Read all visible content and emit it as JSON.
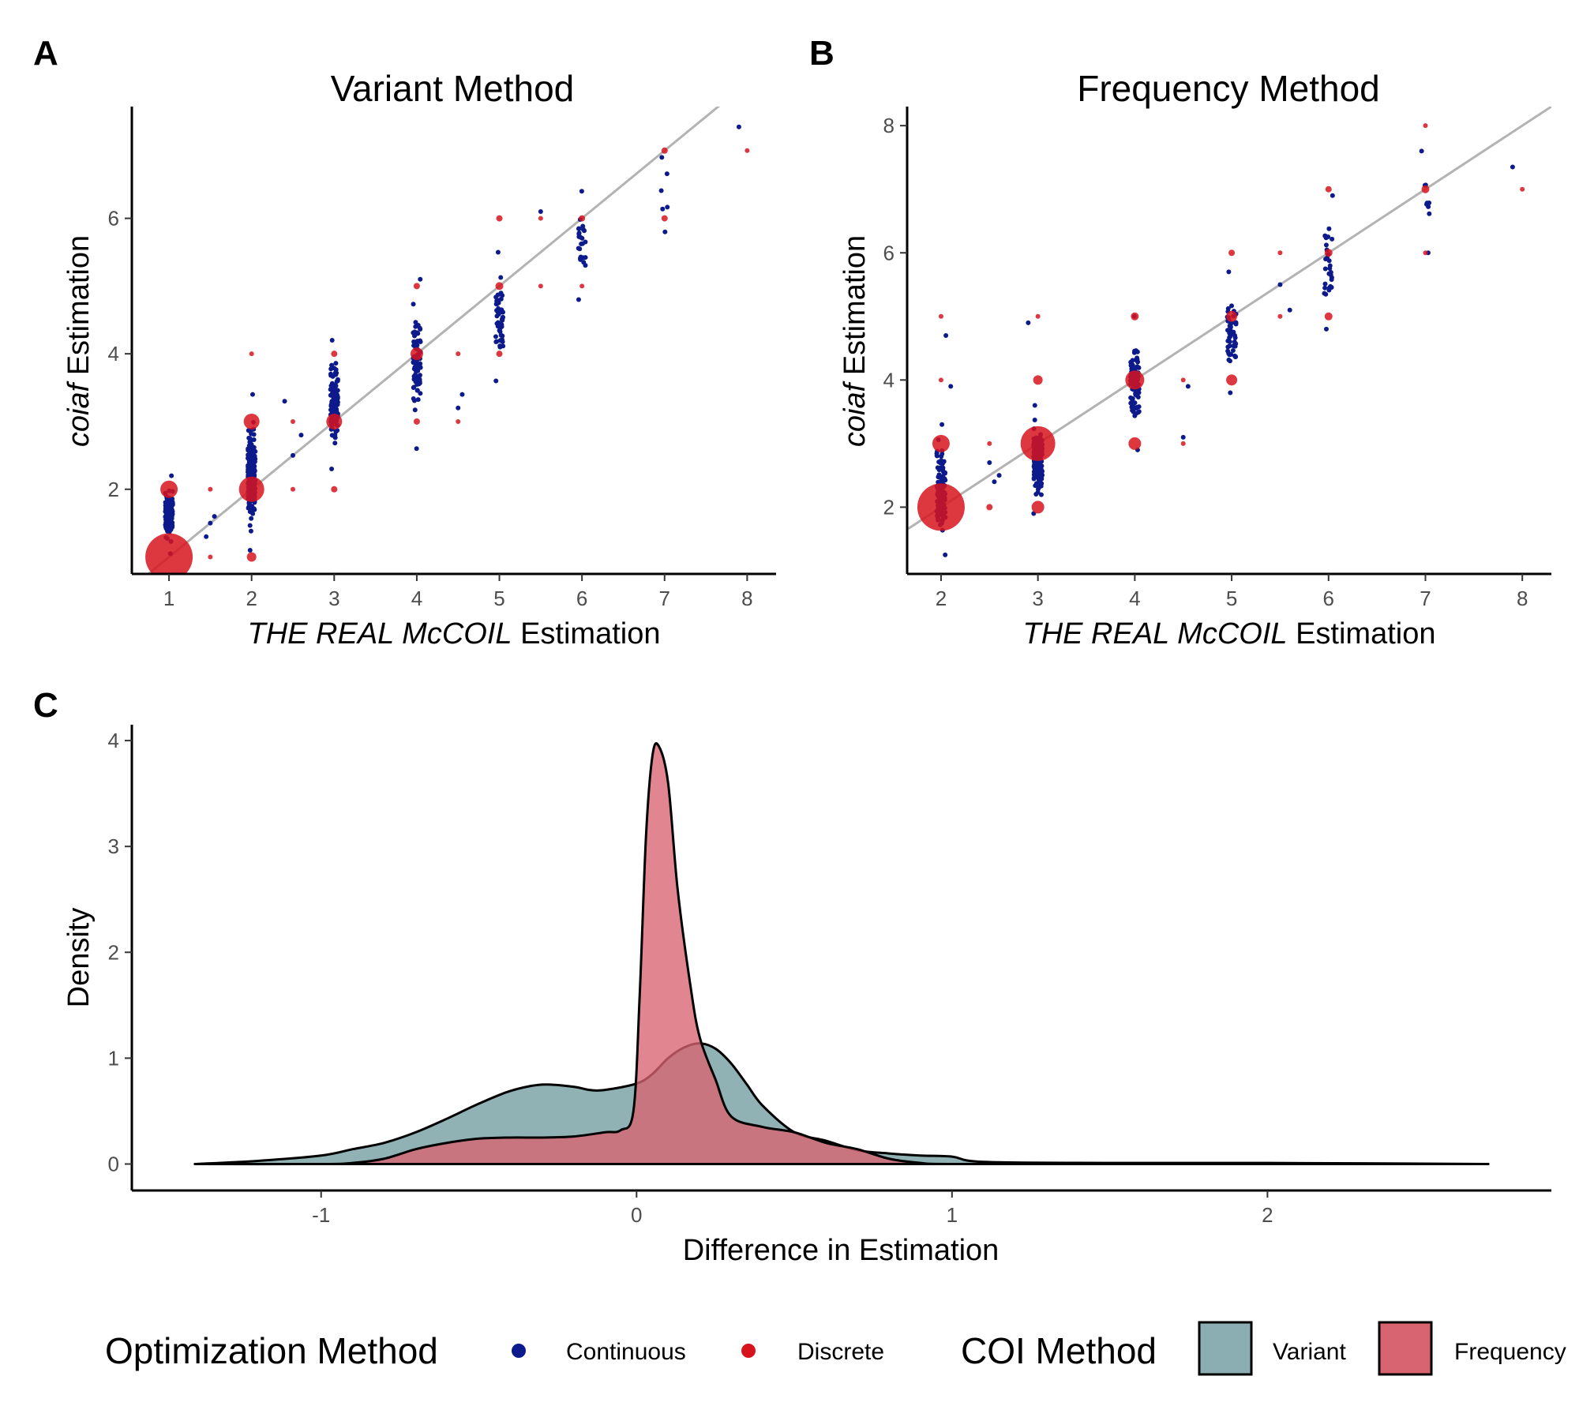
{
  "panels": {
    "a": {
      "letter": "A",
      "title": "Variant Method",
      "ylabel_italic": "coiaf",
      "ylabel_rest": " Estimation",
      "xlabel_italic": "THE REAL McCOIL",
      "xlabel_rest": " Estimation"
    },
    "b": {
      "letter": "B",
      "title": "Frequency Method",
      "ylabel_italic": "coiaf",
      "ylabel_rest": " Estimation",
      "xlabel_italic": "THE REAL McCOIL",
      "xlabel_rest": " Estimation"
    },
    "c": {
      "letter": "C",
      "xlabel": "Difference in Estimation",
      "ylabel": "Density"
    }
  },
  "legend": {
    "optimization_title": "Optimization Method",
    "optimization_items": [
      {
        "label": "Continuous",
        "color": "#0d1a8c"
      },
      {
        "label": "Discrete",
        "color": "#d7141e"
      }
    ],
    "coi_title": "COI Method",
    "coi_items": [
      {
        "label": "Variant",
        "color": "#8aaeb1"
      },
      {
        "label": "Frequency",
        "color": "#d96471"
      }
    ]
  },
  "chart_data": [
    {
      "type": "scatter",
      "panel": "A",
      "title": "Variant Method",
      "xlabel": "THE REAL McCOIL Estimation",
      "ylabel": "coiaf Estimation",
      "xlim": [
        0.55,
        8.35
      ],
      "ylim": [
        0.75,
        7.65
      ],
      "x_ticks": [
        1,
        2,
        3,
        4,
        5,
        6,
        7,
        8
      ],
      "y_ticks": [
        2,
        4,
        6
      ],
      "reference_line": {
        "slope": 1,
        "intercept": 0,
        "color": "#b3b3b3"
      },
      "continuous_clusters": [
        {
          "x": 1,
          "y_min": 1.05,
          "y_max": 2.2,
          "n": 160
        },
        {
          "x": 2,
          "y_min": 1.1,
          "y_max": 3.4,
          "n": 220
        },
        {
          "x": 3,
          "y_min": 2.3,
          "y_max": 4.2,
          "n": 140
        },
        {
          "x": 4,
          "y_min": 2.6,
          "y_max": 5.1,
          "n": 90
        },
        {
          "x": 5,
          "y_min": 3.6,
          "y_max": 5.5,
          "n": 50
        },
        {
          "x": 6,
          "y_min": 4.8,
          "y_max": 6.4,
          "n": 25
        },
        {
          "x": 7,
          "y_min": 5.8,
          "y_max": 6.9,
          "n": 6
        }
      ],
      "continuous_extra": [
        {
          "x": 1.45,
          "y": 1.3
        },
        {
          "x": 1.5,
          "y": 1.5
        },
        {
          "x": 1.55,
          "y": 1.6
        },
        {
          "x": 2.4,
          "y": 3.3
        },
        {
          "x": 2.5,
          "y": 2.5
        },
        {
          "x": 2.6,
          "y": 2.8
        },
        {
          "x": 4.5,
          "y": 3.2
        },
        {
          "x": 4.55,
          "y": 3.4
        },
        {
          "x": 5.5,
          "y": 6.1
        },
        {
          "x": 7.9,
          "y": 7.35
        }
      ],
      "discrete": [
        {
          "x": 1,
          "y": 1,
          "size": 30
        },
        {
          "x": 1,
          "y": 2,
          "size": 11
        },
        {
          "x": 1.5,
          "y": 1,
          "size": 3
        },
        {
          "x": 1.5,
          "y": 2,
          "size": 3
        },
        {
          "x": 2,
          "y": 2,
          "size": 16
        },
        {
          "x": 2,
          "y": 3,
          "size": 10
        },
        {
          "x": 2,
          "y": 1,
          "size": 6
        },
        {
          "x": 2,
          "y": 4,
          "size": 3
        },
        {
          "x": 2.5,
          "y": 2,
          "size": 3
        },
        {
          "x": 2.5,
          "y": 3,
          "size": 3
        },
        {
          "x": 3,
          "y": 3,
          "size": 10
        },
        {
          "x": 3,
          "y": 2,
          "size": 4
        },
        {
          "x": 3,
          "y": 4,
          "size": 4
        },
        {
          "x": 4,
          "y": 4,
          "size": 8
        },
        {
          "x": 4,
          "y": 3,
          "size": 4
        },
        {
          "x": 4,
          "y": 5,
          "size": 4
        },
        {
          "x": 4.5,
          "y": 3,
          "size": 3
        },
        {
          "x": 4.5,
          "y": 4,
          "size": 3
        },
        {
          "x": 5,
          "y": 5,
          "size": 5
        },
        {
          "x": 5,
          "y": 4,
          "size": 4
        },
        {
          "x": 5,
          "y": 6,
          "size": 4
        },
        {
          "x": 5.5,
          "y": 5,
          "size": 3
        },
        {
          "x": 5.5,
          "y": 6,
          "size": 3
        },
        {
          "x": 6,
          "y": 6,
          "size": 4
        },
        {
          "x": 6,
          "y": 5,
          "size": 3
        },
        {
          "x": 7,
          "y": 6,
          "size": 4
        },
        {
          "x": 7,
          "y": 7,
          "size": 4
        },
        {
          "x": 8,
          "y": 7,
          "size": 3
        }
      ]
    },
    {
      "type": "scatter",
      "panel": "B",
      "title": "Frequency Method",
      "xlabel": "THE REAL McCOIL Estimation",
      "ylabel": "coiaf Estimation",
      "xlim": [
        1.65,
        8.3
      ],
      "ylim": [
        0.95,
        8.3
      ],
      "x_ticks": [
        2,
        3,
        4,
        5,
        6,
        7,
        8
      ],
      "y_ticks": [
        2,
        4,
        6,
        8
      ],
      "reference_line": {
        "slope": 1,
        "intercept": 0,
        "color": "#b3b3b3"
      },
      "continuous_clusters": [
        {
          "x": 2,
          "y_min": 1.25,
          "y_max": 3.3,
          "n": 120
        },
        {
          "x": 3,
          "y_min": 1.9,
          "y_max": 3.6,
          "n": 140
        },
        {
          "x": 4,
          "y_min": 2.9,
          "y_max": 5.0,
          "n": 100
        },
        {
          "x": 5,
          "y_min": 3.8,
          "y_max": 5.7,
          "n": 55
        },
        {
          "x": 6,
          "y_min": 4.8,
          "y_max": 6.9,
          "n": 30
        },
        {
          "x": 7,
          "y_min": 6.0,
          "y_max": 7.6,
          "n": 9
        }
      ],
      "continuous_extra": [
        {
          "x": 2.05,
          "y": 4.7
        },
        {
          "x": 2.1,
          "y": 3.9
        },
        {
          "x": 2.5,
          "y": 2.7
        },
        {
          "x": 2.55,
          "y": 2.4
        },
        {
          "x": 2.6,
          "y": 2.5
        },
        {
          "x": 2.9,
          "y": 4.9
        },
        {
          "x": 4.5,
          "y": 3.1
        },
        {
          "x": 4.55,
          "y": 3.9
        },
        {
          "x": 5.5,
          "y": 5.5
        },
        {
          "x": 5.6,
          "y": 5.1
        },
        {
          "x": 7.9,
          "y": 7.35
        }
      ],
      "discrete": [
        {
          "x": 2,
          "y": 2,
          "size": 30
        },
        {
          "x": 2,
          "y": 3,
          "size": 11
        },
        {
          "x": 2,
          "y": 4,
          "size": 3
        },
        {
          "x": 2,
          "y": 5,
          "size": 3
        },
        {
          "x": 2.5,
          "y": 2,
          "size": 4
        },
        {
          "x": 2.5,
          "y": 3,
          "size": 3
        },
        {
          "x": 3,
          "y": 3,
          "size": 22
        },
        {
          "x": 3,
          "y": 2,
          "size": 8
        },
        {
          "x": 3,
          "y": 4,
          "size": 6
        },
        {
          "x": 3,
          "y": 5,
          "size": 3
        },
        {
          "x": 4,
          "y": 4,
          "size": 12
        },
        {
          "x": 4,
          "y": 3,
          "size": 8
        },
        {
          "x": 4,
          "y": 5,
          "size": 5
        },
        {
          "x": 4.5,
          "y": 3,
          "size": 3
        },
        {
          "x": 4.5,
          "y": 4,
          "size": 3
        },
        {
          "x": 5,
          "y": 5,
          "size": 7
        },
        {
          "x": 5,
          "y": 4,
          "size": 7
        },
        {
          "x": 5,
          "y": 6,
          "size": 4
        },
        {
          "x": 5.5,
          "y": 5,
          "size": 3
        },
        {
          "x": 5.5,
          "y": 6,
          "size": 3
        },
        {
          "x": 6,
          "y": 6,
          "size": 5
        },
        {
          "x": 6,
          "y": 5,
          "size": 5
        },
        {
          "x": 6,
          "y": 7,
          "size": 4
        },
        {
          "x": 7,
          "y": 7,
          "size": 5
        },
        {
          "x": 7,
          "y": 6,
          "size": 3
        },
        {
          "x": 7,
          "y": 8,
          "size": 3
        },
        {
          "x": 8,
          "y": 7,
          "size": 3
        }
      ]
    },
    {
      "type": "area",
      "panel": "C",
      "xlabel": "Difference in Estimation",
      "ylabel": "Density",
      "xlim": [
        -1.6,
        2.9
      ],
      "ylim": [
        -0.25,
        4.15
      ],
      "x_ticks": [
        -1,
        0,
        1,
        2
      ],
      "x_tick_labels": [
        "-1",
        "0",
        "1",
        "2"
      ],
      "y_ticks": [
        0,
        1,
        2,
        3,
        4
      ],
      "series": [
        {
          "name": "Variant",
          "color": "#8aaeb1",
          "x": [
            -1.4,
            -1.2,
            -1.0,
            -0.9,
            -0.8,
            -0.7,
            -0.6,
            -0.5,
            -0.4,
            -0.3,
            -0.2,
            -0.15,
            -0.1,
            0.0,
            0.05,
            0.1,
            0.15,
            0.2,
            0.25,
            0.3,
            0.35,
            0.4,
            0.5,
            0.6,
            0.7,
            0.8,
            0.9,
            1.0,
            1.1,
            1.5,
            2.0,
            2.7
          ],
          "y": [
            0.0,
            0.03,
            0.08,
            0.14,
            0.2,
            0.3,
            0.43,
            0.57,
            0.69,
            0.75,
            0.73,
            0.7,
            0.7,
            0.76,
            0.85,
            1.0,
            1.1,
            1.14,
            1.09,
            0.95,
            0.75,
            0.55,
            0.3,
            0.22,
            0.13,
            0.1,
            0.08,
            0.07,
            0.02,
            0.01,
            0.01,
            0.0
          ]
        },
        {
          "name": "Frequency",
          "color": "#d96471",
          "x": [
            -1.4,
            -1.0,
            -0.9,
            -0.8,
            -0.7,
            -0.6,
            -0.5,
            -0.4,
            -0.3,
            -0.2,
            -0.1,
            -0.05,
            -0.01,
            0.01,
            0.03,
            0.05,
            0.07,
            0.1,
            0.13,
            0.17,
            0.2,
            0.25,
            0.3,
            0.4,
            0.5,
            0.6,
            0.7,
            0.8,
            0.9,
            1.0,
            1.5,
            2.7
          ],
          "y": [
            0.0,
            0.0,
            0.01,
            0.05,
            0.14,
            0.2,
            0.24,
            0.25,
            0.25,
            0.26,
            0.3,
            0.32,
            0.5,
            1.6,
            3.1,
            3.85,
            3.95,
            3.6,
            2.6,
            1.7,
            1.2,
            0.8,
            0.45,
            0.35,
            0.3,
            0.2,
            0.14,
            0.05,
            0.01,
            0.0,
            0.0,
            0.0
          ]
        }
      ]
    }
  ]
}
